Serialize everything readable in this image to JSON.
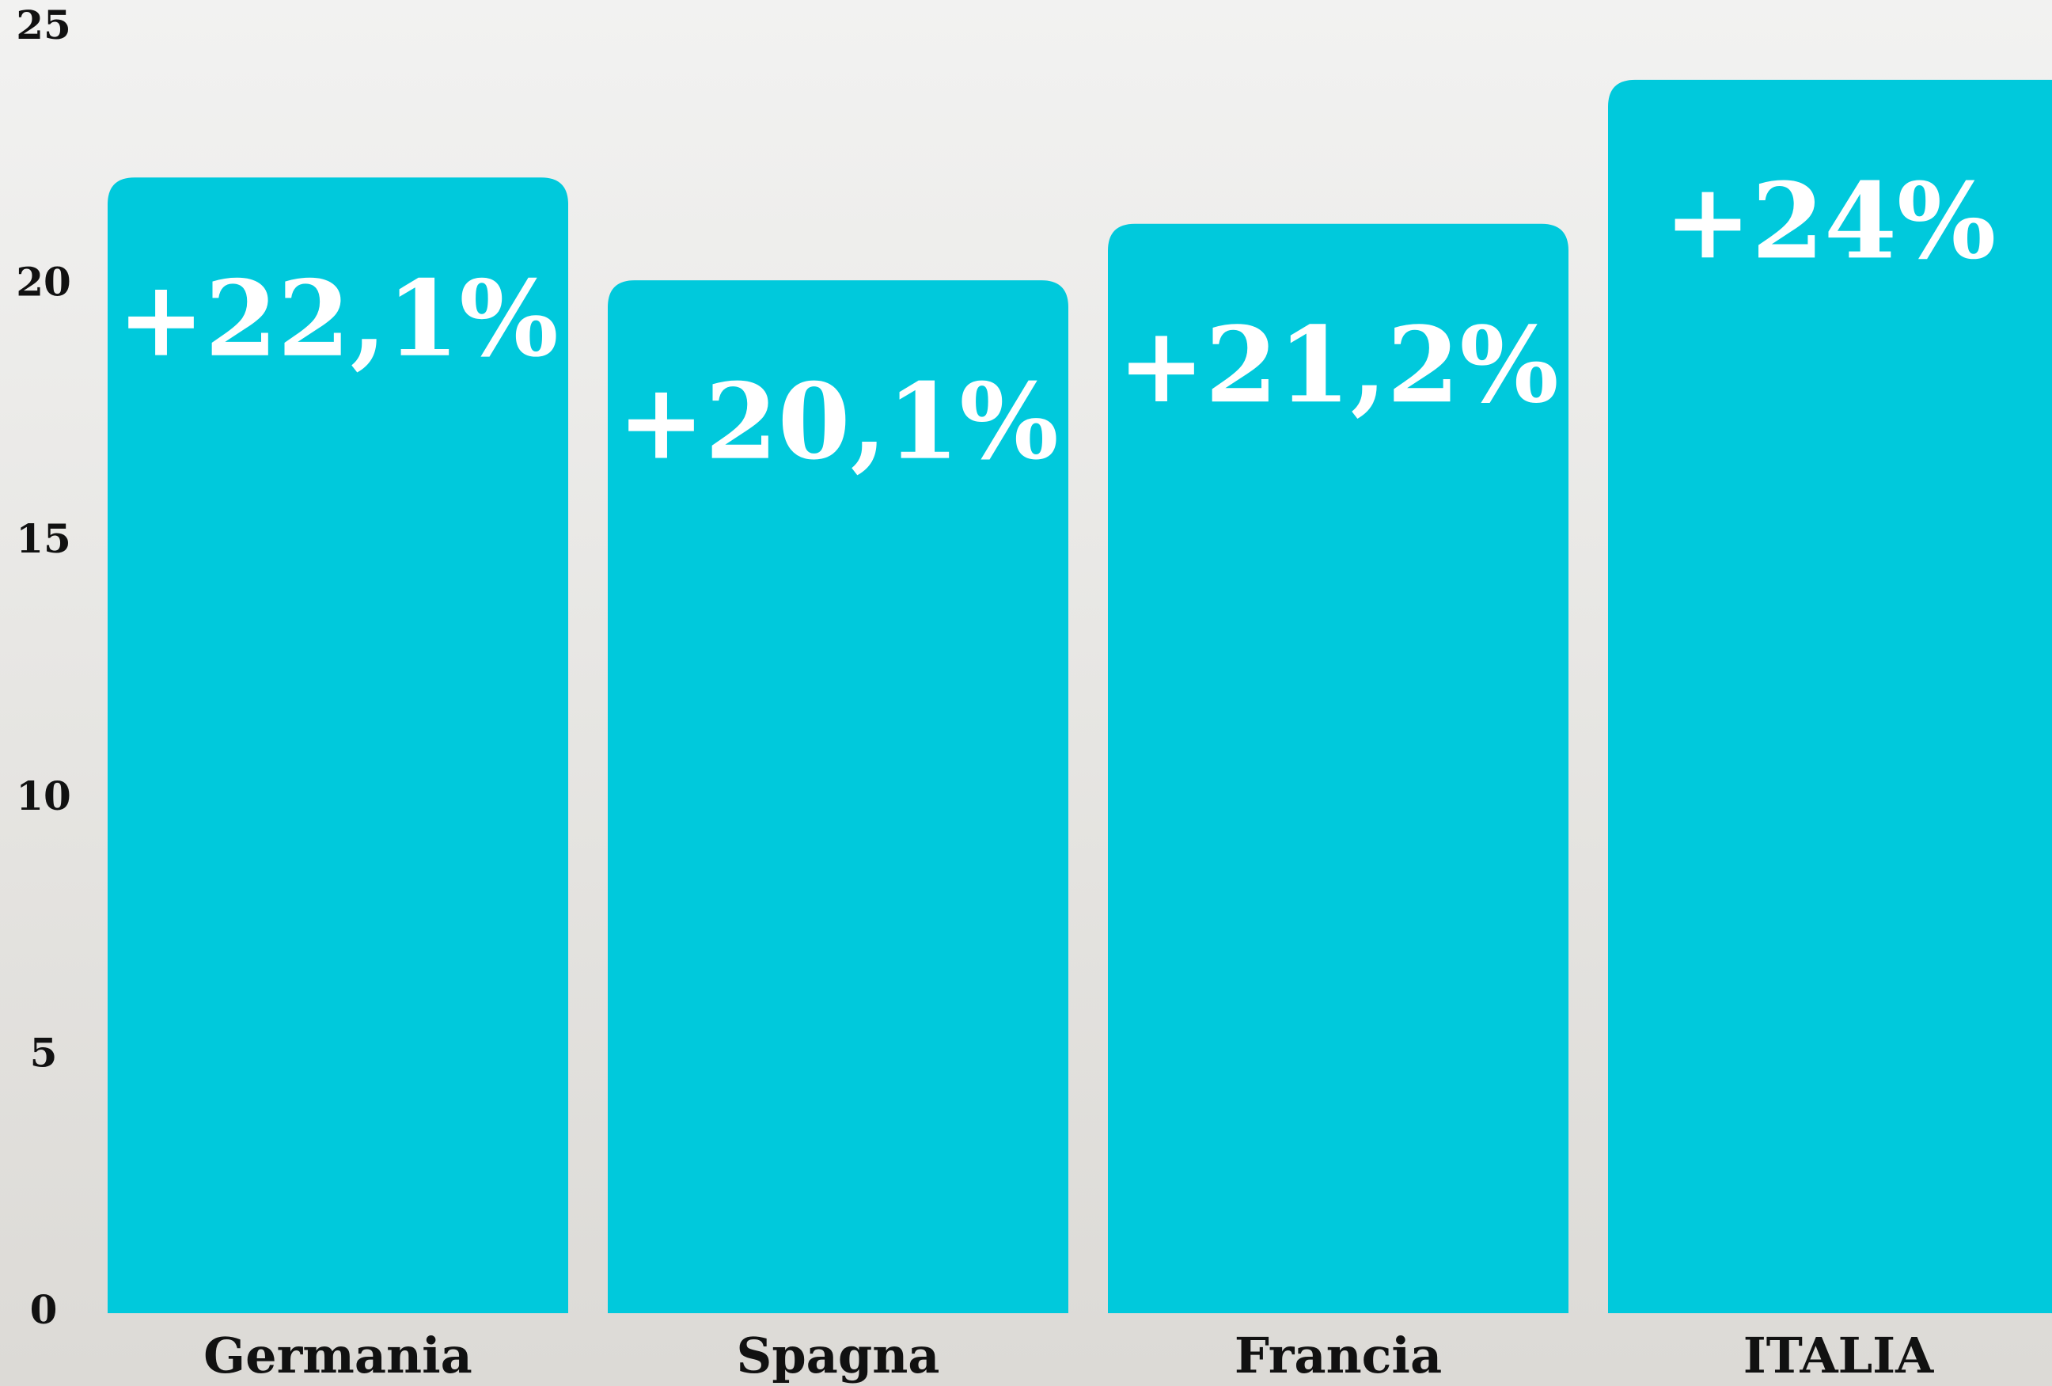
{
  "chart_data": {
    "type": "bar",
    "categories": [
      "Germania",
      "Spagna",
      "Francia",
      "ITALIA"
    ],
    "values": [
      22.1,
      20.1,
      21.2,
      24
    ],
    "value_labels": [
      "+22,1%",
      "+20,1%",
      "+21,2%",
      "+24%"
    ],
    "color": "#00c9dc",
    "ylim": [
      0,
      25
    ],
    "yticks": [
      0,
      5,
      10,
      15,
      20,
      25
    ],
    "grid": false
  }
}
